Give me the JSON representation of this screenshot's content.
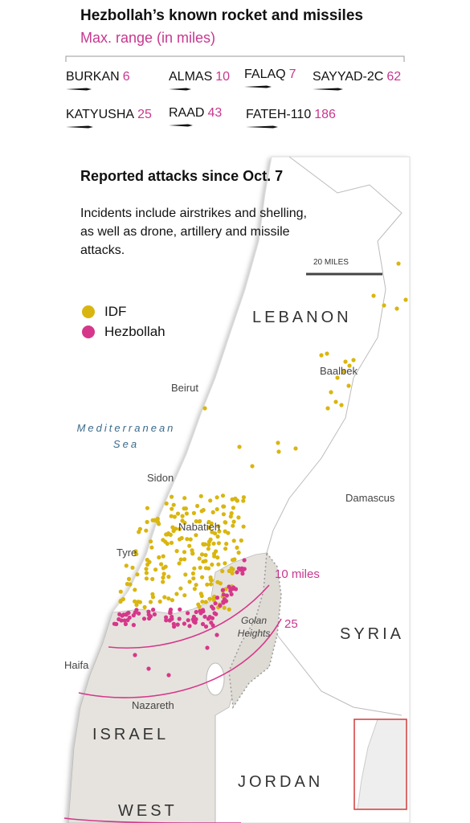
{
  "header": {
    "title": "Hezbollah’s known rocket and missiles",
    "subtitle": "Max. range (in miles)"
  },
  "missiles": [
    {
      "name": "BURKAN",
      "range": 6
    },
    {
      "name": "ALMAS",
      "range": 10
    },
    {
      "name": "FALAQ",
      "range": 7
    },
    {
      "name": "SAYYAD-2C",
      "range": 62
    },
    {
      "name": "KATYUSHA",
      "range": 25
    },
    {
      "name": "RAAD",
      "range": 43
    },
    {
      "name": "FATEH-110",
      "range": 186
    }
  ],
  "map": {
    "title": "Reported attacks since Oct. 7",
    "description": "Incidents include airstrikes and shelling, as well as drone, artillery and missile attacks.",
    "scale": "20 MILES",
    "legend": [
      {
        "name": "IDF",
        "color": "#d9b60f"
      },
      {
        "name": "Hezbollah",
        "color": "#d6378a"
      }
    ],
    "places": [
      "LEBANON",
      "Baalbek",
      "Beirut",
      "Mediterranean Sea",
      "Sidon",
      "Damascus",
      "Nabatieh",
      "Tyre",
      "Golan Heights",
      "SYRIA",
      "Haifa",
      "Nazareth",
      "ISRAEL",
      "JORDAN",
      "WEST"
    ],
    "ring_labels": [
      "10 miles",
      "25"
    ]
  }
}
